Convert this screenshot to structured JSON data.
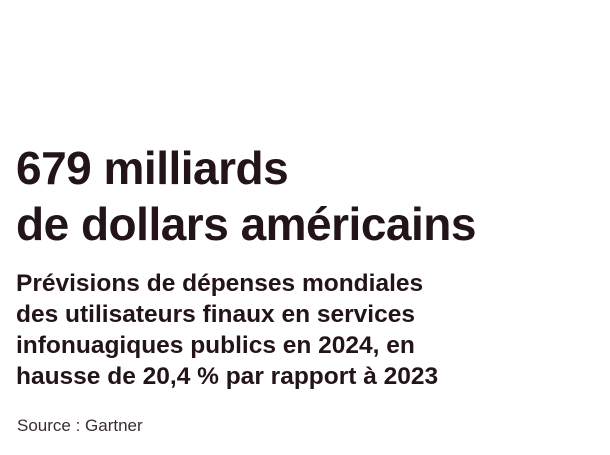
{
  "headline": {
    "line1": "679 milliards",
    "line2": "de dollars américains"
  },
  "subtitle": {
    "line1": "Prévisions de dépenses mondiales",
    "line2": "des utilisateurs finaux en services",
    "line3": "infonuagiques publics en 2024, en",
    "line4": "hausse de 20,4 % par rapport à 2023"
  },
  "source": "Source : Gartner",
  "colors": {
    "text": "#23141a",
    "source_text": "#3a2e33",
    "background": "#ffffff"
  }
}
